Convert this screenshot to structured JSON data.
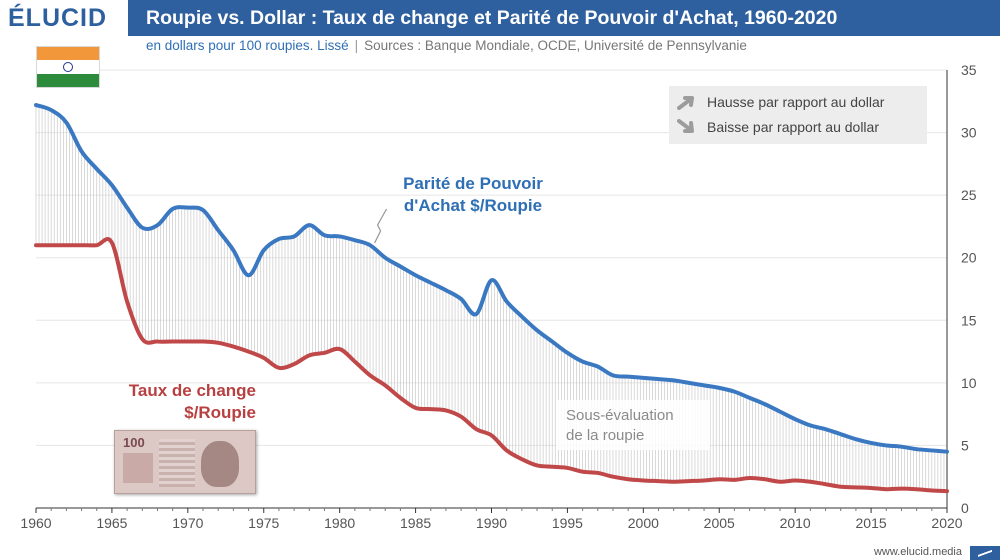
{
  "header": {
    "logo": "ÉLUCID",
    "title": "Roupie vs. Dollar : Taux de change et Parité de Pouvoir d'Achat, 1960-2020"
  },
  "subtitle": {
    "unit": "en dollars pour 100 roupies. Lissé",
    "separator": "|",
    "sources": "Sources : Banque Mondiale, OCDE, Université de Pennsylvanie"
  },
  "legend": {
    "up": "Hausse par rapport au dollar",
    "down": "Baisse par rapport au dollar"
  },
  "annotations": {
    "ppp_line1": "Parité de Pouvoir",
    "ppp_line2": "d'Achat $/Roupie",
    "fx_line1": "Taux de change",
    "fx_line2": "$/Roupie",
    "gap_line1": "Sous-évaluation",
    "gap_line2": "de la roupie"
  },
  "banknote": {
    "denomination": "100"
  },
  "flag": {
    "icon": "india-flag-icon",
    "colors": [
      "#f2973a",
      "#ffffff",
      "#2d8c3c"
    ]
  },
  "footer": {
    "url": "www.elucid.media"
  },
  "colors": {
    "brand": "#2e5f9e",
    "ppp": "#3a78c2",
    "fx": "#c04848",
    "grid": "#e6e6e6"
  },
  "chart_data": {
    "type": "line",
    "title": "Roupie vs. Dollar : Taux de change et Parité de Pouvoir d'Achat, 1960-2020",
    "xlim": [
      1960,
      2020
    ],
    "ylim": [
      0,
      35
    ],
    "x_ticks": [
      "1960",
      "1965",
      "1970",
      "1975",
      "1980",
      "1985",
      "1990",
      "1995",
      "2000",
      "2005",
      "2010",
      "2015",
      "2020"
    ],
    "y_ticks": [
      "0",
      "5",
      "10",
      "15",
      "20",
      "25",
      "30",
      "35"
    ],
    "y_axis_side": "right",
    "grid": true,
    "x": [
      1960,
      1961,
      1962,
      1963,
      1964,
      1965,
      1966,
      1967,
      1968,
      1969,
      1970,
      1971,
      1972,
      1973,
      1974,
      1975,
      1976,
      1977,
      1978,
      1979,
      1980,
      1981,
      1982,
      1983,
      1984,
      1985,
      1986,
      1987,
      1988,
      1989,
      1990,
      1991,
      1992,
      1993,
      1994,
      1995,
      1996,
      1997,
      1998,
      1999,
      2000,
      2001,
      2002,
      2003,
      2004,
      2005,
      2006,
      2007,
      2008,
      2009,
      2010,
      2011,
      2012,
      2013,
      2014,
      2015,
      2016,
      2017,
      2018,
      2019,
      2020
    ],
    "series": [
      {
        "name": "Parité de Pouvoir d'Achat $/Roupie",
        "values": [
          32.2,
          31.8,
          30.8,
          28.5,
          27.1,
          25.8,
          24,
          22.4,
          22.6,
          23.9,
          24,
          23.8,
          22.2,
          20.6,
          18.6,
          20.6,
          21.5,
          21.7,
          22.6,
          21.8,
          21.7,
          21.4,
          21,
          20,
          19.3,
          18.6,
          18,
          17.4,
          16.7,
          15.5,
          18.2,
          16.5,
          15.3,
          14.2,
          13.3,
          12.4,
          11.7,
          11.3,
          10.6,
          10.5,
          10.4,
          10.3,
          10.2,
          10,
          9.8,
          9.6,
          9.3,
          8.8,
          8.3,
          7.7,
          7.1,
          6.6,
          6.3,
          5.9,
          5.5,
          5.2,
          5,
          4.9,
          4.7,
          4.6,
          4.5
        ]
      },
      {
        "name": "Taux de change $/Roupie",
        "values": [
          21,
          21,
          21,
          21,
          21,
          21.2,
          16.5,
          13.5,
          13.3,
          13.3,
          13.3,
          13.3,
          13.2,
          12.9,
          12.5,
          12,
          11.2,
          11.5,
          12.2,
          12.4,
          12.7,
          11.7,
          10.6,
          9.8,
          8.8,
          8,
          7.9,
          7.8,
          7.3,
          6.3,
          5.8,
          4.6,
          3.9,
          3.4,
          3.3,
          3.2,
          2.9,
          2.8,
          2.5,
          2.3,
          2.2,
          2.15,
          2.1,
          2.15,
          2.2,
          2.3,
          2.25,
          2.4,
          2.3,
          2.1,
          2.2,
          2.1,
          1.9,
          1.7,
          1.65,
          1.6,
          1.5,
          1.55,
          1.5,
          1.4,
          1.35
        ]
      }
    ]
  }
}
